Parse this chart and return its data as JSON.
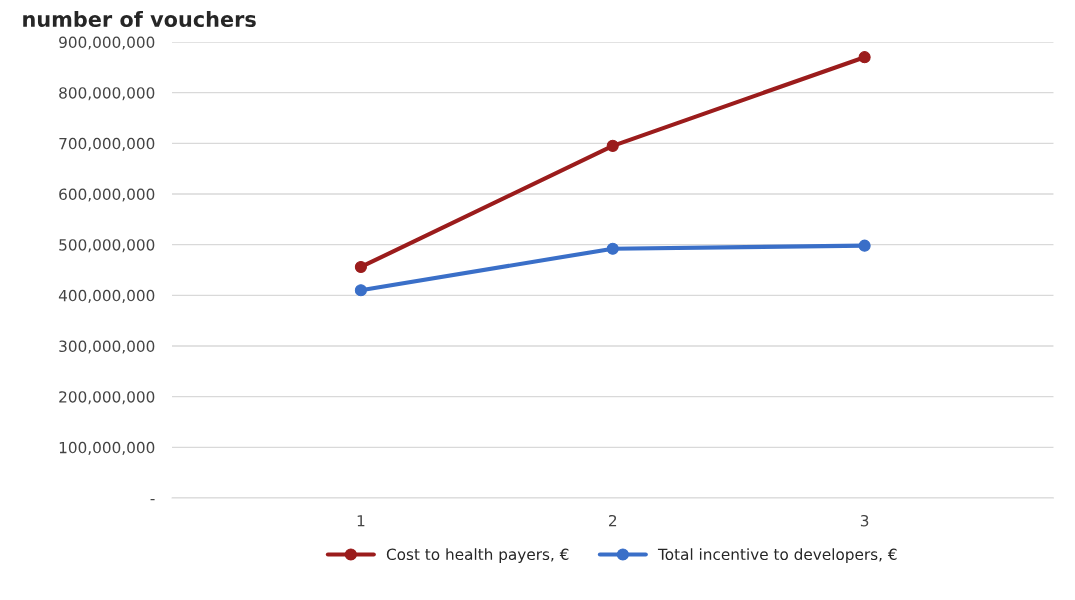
{
  "chart_data": {
    "type": "line",
    "title": "number of vouchers",
    "categories": [
      "1",
      "2",
      "3"
    ],
    "series": [
      {
        "name": "Cost to health payers, €",
        "color": "#9b1c1c",
        "values": [
          456000000,
          695000000,
          870000000
        ]
      },
      {
        "name": "Total incentive to developers, €",
        "color": "#3a6fc8",
        "values": [
          410000000,
          492000000,
          498000000
        ]
      }
    ],
    "ylim": [
      0,
      900000000
    ],
    "yticks": [
      {
        "value": 0,
        "label": "-"
      },
      {
        "value": 100000000,
        "label": "100,000,000"
      },
      {
        "value": 200000000,
        "label": "200,000,000"
      },
      {
        "value": 300000000,
        "label": "300,000,000"
      },
      {
        "value": 400000000,
        "label": "400,000,000"
      },
      {
        "value": 500000000,
        "label": "500,000,000"
      },
      {
        "value": 600000000,
        "label": "600,000,000"
      },
      {
        "value": 700000000,
        "label": "700,000,000"
      },
      {
        "value": 800000000,
        "label": "800,000,000"
      },
      {
        "value": 900000000,
        "label": "900,000,000"
      }
    ],
    "grid": "y",
    "legend": "bottom",
    "marker": "circle",
    "line_style": "solid"
  }
}
